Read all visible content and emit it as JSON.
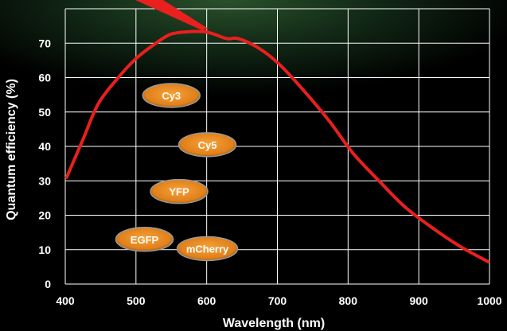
{
  "chart_data": {
    "type": "line",
    "xlabel": "Wavelength (nm)",
    "ylabel": "Quantum efficiency (%)",
    "xlim": [
      400,
      1000
    ],
    "ylim": [
      0,
      80
    ],
    "x_ticks": [
      "400",
      "500",
      "600",
      "700",
      "800",
      "900",
      "1000"
    ],
    "y_ticks": [
      "0",
      "10",
      "20",
      "30",
      "40",
      "50",
      "60",
      "70"
    ],
    "grid": true,
    "series": [
      {
        "color": "#e8201e",
        "x": [
          402,
          425,
          447,
          475,
          500,
          525,
          548,
          573,
          598,
          612,
          629,
          645,
          674,
          702,
          734,
          773,
          807,
          846,
          880,
          918,
          958,
          998
        ],
        "y": [
          31,
          42,
          52.5,
          60,
          65.5,
          69.5,
          72.5,
          73.3,
          73.3,
          72.5,
          71.3,
          71.3,
          68.5,
          64,
          57,
          47.5,
          38,
          29.5,
          22.5,
          16.5,
          11,
          6.5
        ]
      }
    ],
    "annotations": [
      {
        "label": "Cy3",
        "x": 550,
        "y": 54.8
      },
      {
        "label": "Cy5",
        "x": 601,
        "y": 40.5
      },
      {
        "label": "YFP",
        "x": 561,
        "y": 26.9
      },
      {
        "label": "EGFP",
        "x": 512,
        "y": 13.0
      },
      {
        "label": "mCherry",
        "x": 601,
        "y": 10.3
      }
    ],
    "colors": {
      "background": "#000000",
      "grid": "#ffffff",
      "curve": "#e8201e",
      "bubble": "#f08a1e",
      "text": "#ffffff"
    }
  }
}
